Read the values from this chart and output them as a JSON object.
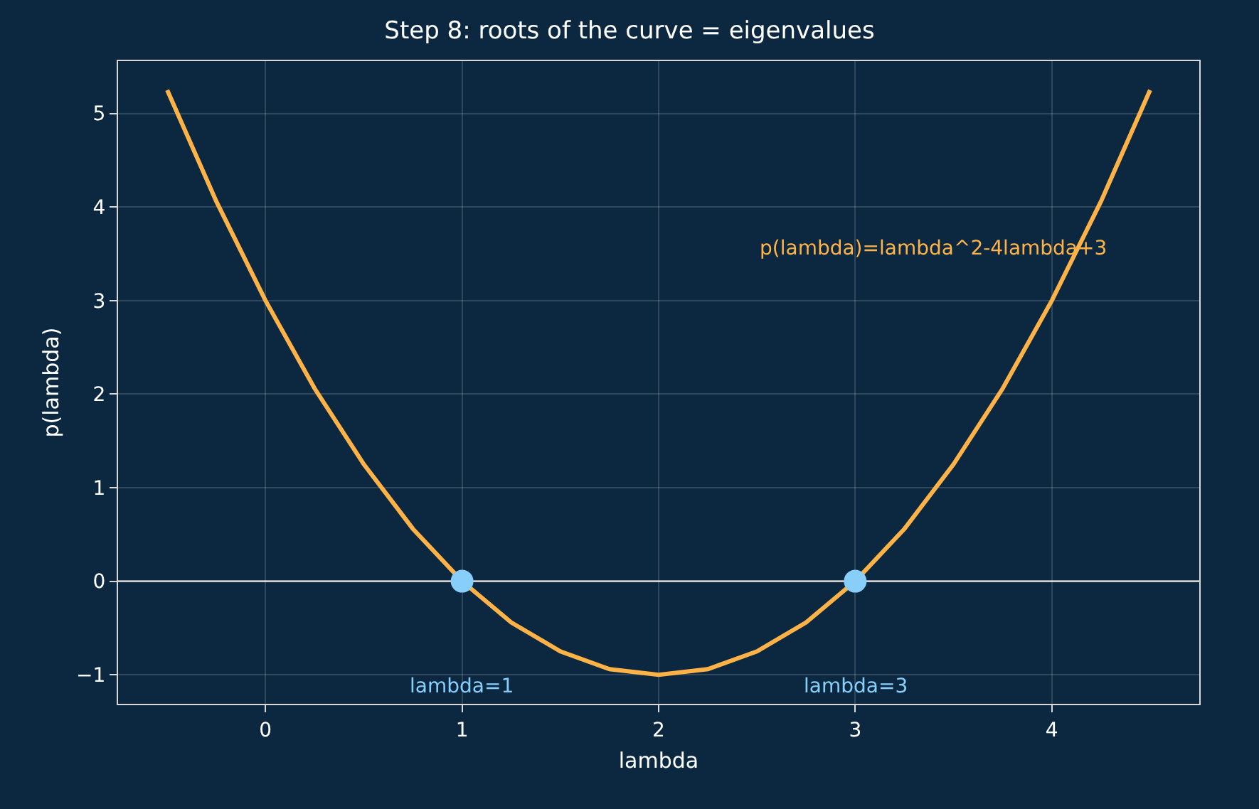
{
  "chart_data": {
    "type": "line",
    "title": "Step 8: roots of the curve = eigenvalues",
    "xlabel": "lambda",
    "ylabel": "p(lambda)",
    "xlim": [
      -0.75,
      4.75
    ],
    "ylim": [
      -1.31,
      5.56
    ],
    "xticks": [
      0,
      1,
      2,
      3,
      4
    ],
    "yticks": [
      {
        "value": -1,
        "label": "−1"
      },
      0,
      1,
      2,
      3,
      4,
      5
    ],
    "grid": true,
    "series": [
      {
        "color": "#ffb347",
        "marker": "none",
        "x": [
          -0.5,
          -0.25,
          0,
          0.25,
          0.5,
          0.75,
          1,
          1.25,
          1.5,
          1.75,
          2,
          2.25,
          2.5,
          2.75,
          3,
          3.25,
          3.5,
          3.75,
          4,
          4.25,
          4.5
        ],
        "values": [
          5.25,
          4.06,
          3,
          2.06,
          1.25,
          0.56,
          0,
          -0.44,
          -0.75,
          -0.94,
          -1,
          -0.94,
          -0.75,
          -0.44,
          0,
          0.56,
          1.25,
          2.06,
          3,
          4.06,
          5.25
        ]
      },
      {
        "type": "scatter",
        "marker": "circle",
        "color": "#87cefa",
        "x": [
          1,
          3
        ],
        "values": [
          0,
          0
        ]
      }
    ],
    "ref_lines": [
      {
        "axis": "y",
        "value": 0,
        "color": "#c8c8c8"
      }
    ],
    "annotations": [
      "lambda=1",
      "lambda=3",
      "p(lambda)=lambda^2-4lambda+3"
    ]
  }
}
